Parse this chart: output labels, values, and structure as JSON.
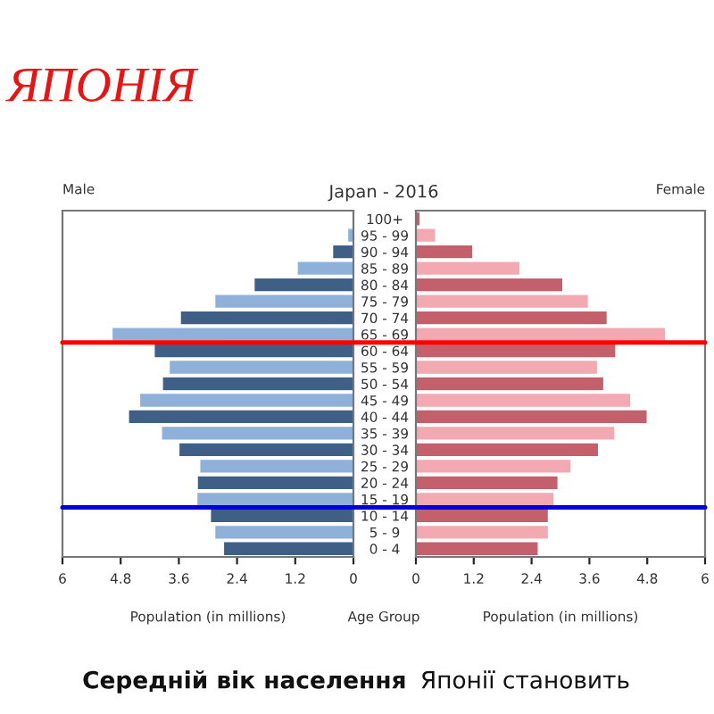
{
  "chart_data": [
    {
      "type": "bar",
      "orientation": "horizontal",
      "title": "ЯПОНІЯ",
      "subtitle": "Japan - 2016",
      "xlabel": "Population (in millions)",
      "categories": [
        "100+",
        "95 - 99",
        "90 - 94",
        "85 - 89",
        "80 - 84",
        "75 - 79",
        "70 - 74",
        "65 - 69",
        "60 - 64",
        "55 - 59",
        "50 - 54",
        "45 - 49",
        "40 - 44",
        "35 - 39",
        "30 - 34",
        "25 - 29",
        "20 - 24",
        "15 - 19",
        "10 - 14",
        "5 - 9",
        "0 - 4"
      ],
      "series": [
        {
          "name": "Male",
          "colors": [
            "#3f5f86",
            "#8fb0d8",
            "#3f5f86",
            "#8fb0d8",
            "#3f5f86",
            "#8fb0d8",
            "#3f5f86",
            "#8fb0d8",
            "#3f5f86",
            "#8fb0d8",
            "#3f5f86",
            "#8fb0d8",
            "#3f5f86",
            "#8fb0d8",
            "#3f5f86",
            "#8fb0d8",
            "#3f5f86",
            "#8fb0d8",
            "#3f5f86",
            "#8fb0d8",
            "#3f5f86"
          ],
          "values": [
            0.02,
            0.12,
            0.43,
            1.16,
            2.05,
            2.86,
            3.57,
            4.98,
            4.11,
            3.8,
            3.94,
            4.41,
            4.64,
            3.96,
            3.6,
            3.17,
            3.22,
            3.23,
            2.95,
            2.86,
            2.68
          ]
        }
      ],
      "xlim": [
        6,
        0
      ],
      "xticks": [
        6,
        4.8,
        3.6,
        2.4,
        1.2,
        0
      ],
      "tick_labels": "x",
      "grid": false,
      "legend": false,
      "ref_lines": [
        {
          "axis": "y",
          "value": "60 - 64",
          "color": "#ff0000"
        },
        {
          "axis": "y",
          "value": "10 - 14",
          "color": "#0000dd"
        }
      ],
      "annotations": [
        "Середній вік населення",
        "Японії становить"
      ]
    },
    {
      "type": "bar",
      "orientation": "horizontal",
      "xlabel": "Population (in millions)",
      "ylabel": "Age Group",
      "categories": [
        "100+",
        "95 - 99",
        "90 - 94",
        "85 - 89",
        "80 - 84",
        "75 - 79",
        "70 - 74",
        "65 - 69",
        "60 - 64",
        "55 - 59",
        "50 - 54",
        "45 - 49",
        "40 - 44",
        "35 - 39",
        "30 - 34",
        "25 - 29",
        "20 - 24",
        "15 - 19",
        "10 - 14",
        "5 - 9",
        "0 - 4"
      ],
      "series": [
        {
          "name": "Female",
          "colors": [
            "#c4606b",
            "#f2a9b1",
            "#c4606b",
            "#f2a9b1",
            "#c4606b",
            "#f2a9b1",
            "#c4606b",
            "#f2a9b1",
            "#c4606b",
            "#f2a9b1",
            "#c4606b",
            "#f2a9b1",
            "#c4606b",
            "#f2a9b1",
            "#c4606b",
            "#f2a9b1",
            "#c4606b",
            "#f2a9b1",
            "#c4606b",
            "#f2a9b1",
            "#c4606b"
          ],
          "values": [
            0.09,
            0.41,
            1.18,
            2.16,
            3.05,
            3.58,
            3.97,
            5.18,
            4.15,
            3.77,
            3.9,
            4.46,
            4.8,
            4.13,
            3.79,
            3.22,
            2.95,
            2.87,
            2.75,
            2.75,
            2.54
          ]
        }
      ],
      "xlim": [
        0,
        6
      ],
      "xticks": [
        0,
        1.2,
        2.4,
        3.6,
        4.8,
        6
      ],
      "grid": false,
      "legend": false
    }
  ]
}
